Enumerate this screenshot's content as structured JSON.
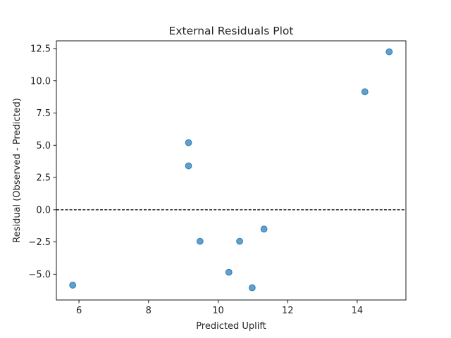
{
  "chart_data": {
    "type": "scatter",
    "title": "External Residuals Plot",
    "xlabel": "Predicted Uplift",
    "ylabel": "Residual (Observed - Predicted)",
    "xlim": [
      5.35,
      15.4
    ],
    "ylim": [
      -7.0,
      13.1
    ],
    "xticks": [
      6,
      8,
      10,
      12,
      14
    ],
    "xtick_labels": [
      "6",
      "8",
      "10",
      "12",
      "14"
    ],
    "yticks": [
      -5.0,
      -2.5,
      0.0,
      2.5,
      5.0,
      7.5,
      10.0,
      12.5
    ],
    "ytick_labels": [
      "−5.0",
      "−2.5",
      "0.0",
      "2.5",
      "5.0",
      "7.5",
      "10.0",
      "12.5"
    ],
    "reference_line": {
      "y": 0,
      "style": "dashed",
      "color": "#000000"
    },
    "point_color": "#1f77b4",
    "grid": false,
    "legend": "none",
    "points": [
      {
        "x": 5.82,
        "y": -5.85
      },
      {
        "x": 9.15,
        "y": 5.2
      },
      {
        "x": 9.15,
        "y": 3.4
      },
      {
        "x": 9.48,
        "y": -2.45
      },
      {
        "x": 10.31,
        "y": -4.85
      },
      {
        "x": 10.62,
        "y": -2.45
      },
      {
        "x": 10.98,
        "y": -6.05
      },
      {
        "x": 11.32,
        "y": -1.5
      },
      {
        "x": 14.22,
        "y": 9.15
      },
      {
        "x": 14.92,
        "y": 12.25
      }
    ]
  }
}
